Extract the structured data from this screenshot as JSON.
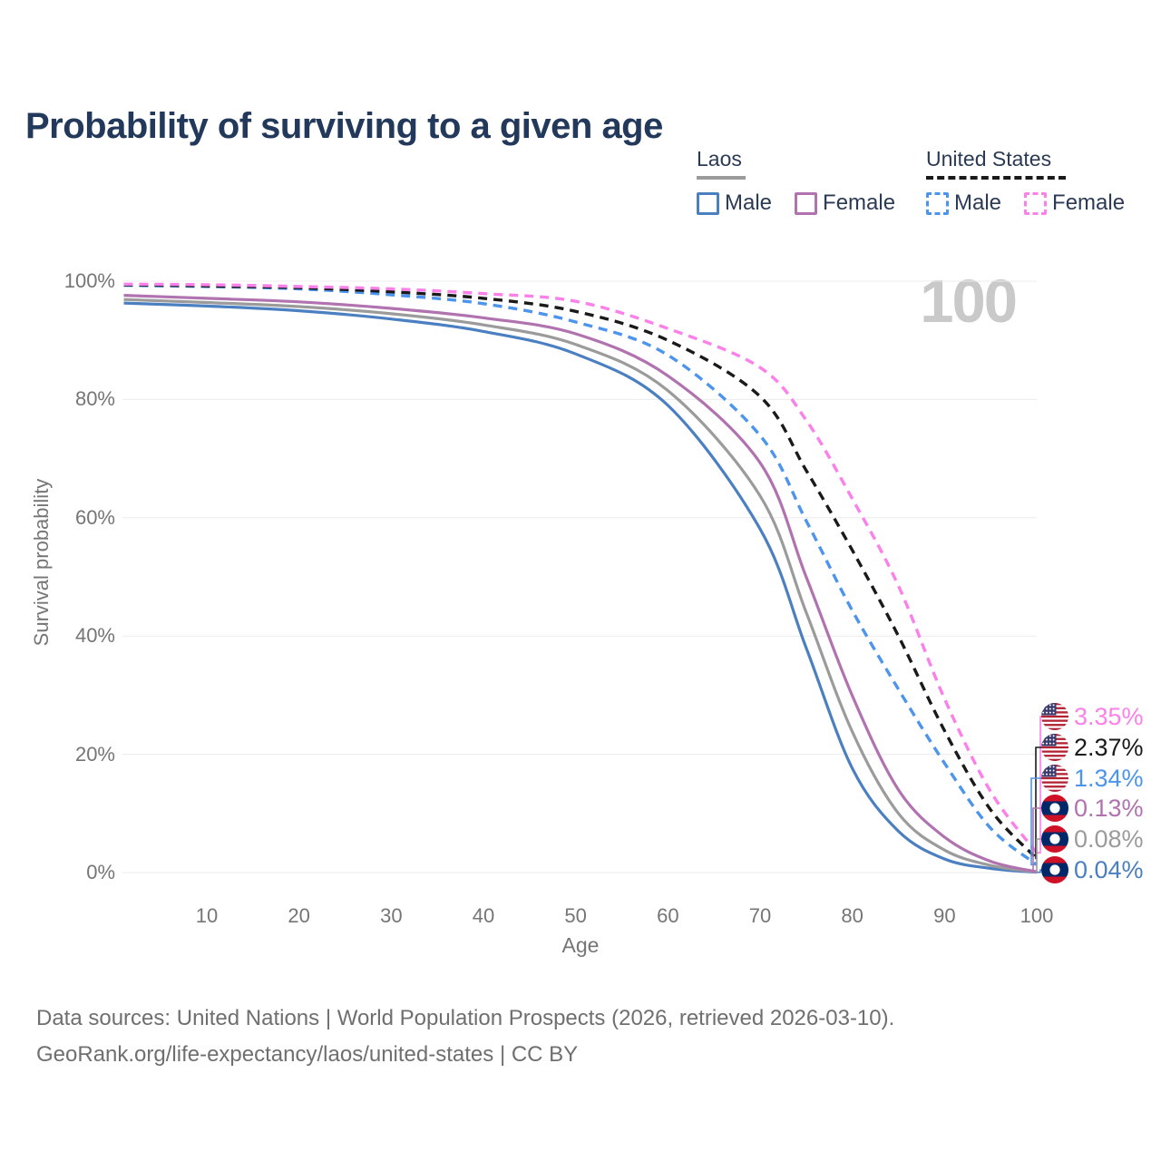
{
  "title": "Probability of surviving to a given age",
  "watermark": "100",
  "colors": {
    "title": "#22395b",
    "legend_text": "#2b3a55",
    "axis": "#757575",
    "grid": "#ececec",
    "watermark": "#c9c9c9",
    "footer": "#6f6f6f"
  },
  "legend": {
    "groups": [
      {
        "label": "Laos",
        "line_style": "solid",
        "underline_color": "#9b9b9b",
        "items": [
          {
            "label": "Male",
            "color": "#4a7fc1",
            "dashed": false
          },
          {
            "label": "Female",
            "color": "#b172b0",
            "dashed": false
          }
        ]
      },
      {
        "label": "United States",
        "line_style": "dashed",
        "underline_color": "#1a1a1a",
        "items": [
          {
            "label": "Male",
            "color": "#4d94ec",
            "dashed": true
          },
          {
            "label": "Female",
            "color": "#fb80ea",
            "dashed": true
          }
        ]
      }
    ]
  },
  "chart_data": {
    "type": "line",
    "title": "Probability of surviving to a given age",
    "xlabel": "Age",
    "ylabel": "Survival probability",
    "xlim": [
      1,
      100
    ],
    "ylim": [
      0,
      100
    ],
    "grid": "horizontal",
    "x_ticks": [
      10,
      20,
      30,
      40,
      50,
      60,
      70,
      80,
      90,
      100
    ],
    "y_ticks": [
      {
        "value": 100,
        "label": "100%"
      },
      {
        "value": 80,
        "label": "80%"
      },
      {
        "value": 60,
        "label": "60%"
      },
      {
        "value": 40,
        "label": "40%"
      },
      {
        "value": 20,
        "label": "20%"
      },
      {
        "value": 0,
        "label": "0%"
      }
    ],
    "x": [
      1,
      10,
      20,
      30,
      40,
      50,
      60,
      70,
      75,
      80,
      85,
      90,
      95,
      100
    ],
    "series": [
      {
        "key": "laos_male",
        "name": "Laos Male",
        "color": "#4a7fc1",
        "dashed": false,
        "values": [
          96.3,
          95.8,
          95.0,
          93.6,
          91.5,
          87.7,
          79.0,
          58.1,
          38.0,
          17.6,
          7.0,
          2.3,
          0.7,
          0.04
        ]
      },
      {
        "key": "laos_total",
        "name": "Laos",
        "color": "#9b9b9b",
        "dashed": false,
        "values": [
          96.9,
          96.4,
          95.7,
          94.5,
          92.6,
          89.3,
          81.5,
          63.7,
          44.0,
          23.8,
          10.0,
          3.8,
          1.2,
          0.08
        ]
      },
      {
        "key": "laos_female",
        "name": "Laos Female",
        "color": "#b172b0",
        "dashed": false,
        "values": [
          97.6,
          97.1,
          96.5,
          95.4,
          93.8,
          91.1,
          84.0,
          69.3,
          50.0,
          29.9,
          14.0,
          6.0,
          1.9,
          0.13
        ]
      },
      {
        "key": "us_male",
        "name": "United States Male",
        "color": "#4d94ec",
        "dashed": true,
        "values": [
          99.3,
          99.1,
          98.7,
          97.7,
          96.2,
          93.1,
          87.5,
          73.9,
          59.5,
          44.3,
          31.0,
          18.5,
          7.5,
          1.34
        ]
      },
      {
        "key": "us_total",
        "name": "United States",
        "color": "#1a1a1a",
        "dashed": true,
        "values": [
          99.4,
          99.2,
          98.9,
          98.2,
          97.1,
          94.9,
          90.0,
          80.5,
          68.0,
          54.5,
          40.0,
          24.0,
          10.6,
          2.37
        ]
      },
      {
        "key": "us_female",
        "name": "United States Female",
        "color": "#fb80ea",
        "dashed": true,
        "values": [
          99.5,
          99.4,
          99.1,
          98.7,
          97.9,
          96.6,
          92.0,
          85.4,
          76.5,
          63.2,
          48.5,
          29.4,
          13.7,
          3.35
        ]
      }
    ]
  },
  "end_labels": [
    {
      "series": "us_female",
      "value": "3.35%",
      "flag": "us",
      "color": "#fb80ea"
    },
    {
      "series": "us_total",
      "value": "2.37%",
      "flag": "us",
      "color": "#1a1a1a"
    },
    {
      "series": "us_male",
      "value": "1.34%",
      "flag": "us",
      "color": "#4d94ec"
    },
    {
      "series": "laos_female",
      "value": "0.13%",
      "flag": "laos",
      "color": "#b172b0"
    },
    {
      "series": "laos_total",
      "value": "0.08%",
      "flag": "laos",
      "color": "#9b9b9b"
    },
    {
      "series": "laos_male",
      "value": "0.04%",
      "flag": "laos",
      "color": "#4a7fc1"
    }
  ],
  "footer": {
    "line1": "Data sources: United Nations | World Population Prospects (2026, retrieved 2026-03-10).",
    "line2": "GeoRank.org/life-expectancy/laos/united-states | CC BY"
  }
}
